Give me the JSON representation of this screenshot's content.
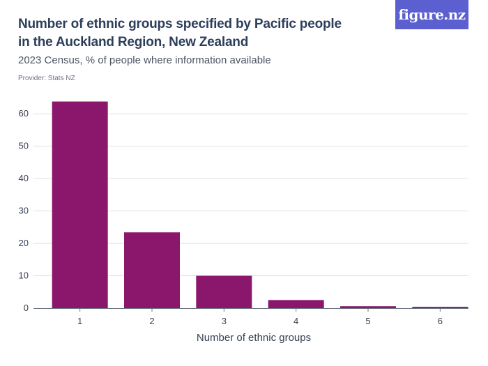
{
  "header": {
    "title": "Number of ethnic groups specified by Pacific people in the Auckland Region, New Zealand",
    "subtitle": "2023 Census, % of people where information available",
    "provider": "Provider: Stats NZ",
    "logo_text": "figure.nz"
  },
  "colors": {
    "bar": "#8b176d",
    "logo_bg": "#5b5fcf",
    "title": "#2c3e5a",
    "grid": "#dde1e6",
    "axis": "#6b7280"
  },
  "chart_data": {
    "type": "bar",
    "categories": [
      "1",
      "2",
      "3",
      "4",
      "5",
      "6"
    ],
    "values": [
      63.8,
      23.4,
      10.0,
      2.5,
      0.6,
      0.4
    ],
    "title": "Number of ethnic groups specified by Pacific people in the Auckland Region, New Zealand",
    "subtitle": "2023 Census, % of people where information available",
    "xlabel": "Number of ethnic groups",
    "ylabel": "",
    "ylim": [
      0,
      65
    ],
    "yticks": [
      0,
      10,
      20,
      30,
      40,
      50,
      60
    ],
    "grid": true,
    "legend": "none"
  }
}
